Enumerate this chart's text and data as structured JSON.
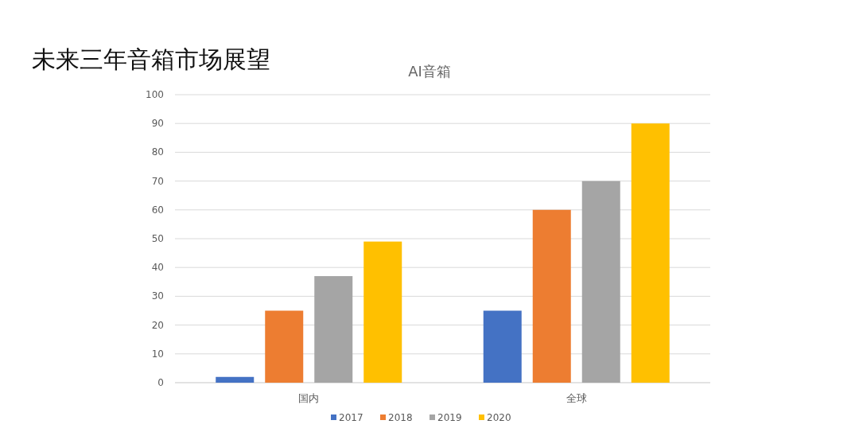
{
  "chart_data": {
    "type": "bar",
    "title": "未来三年音箱市场展望",
    "subtitle": "AI音箱",
    "categories": [
      "国内",
      "全球"
    ],
    "series": [
      {
        "name": "2017",
        "color": "#4472c4",
        "values": [
          2,
          25
        ]
      },
      {
        "name": "2018",
        "color": "#ed7d31",
        "values": [
          25,
          60
        ]
      },
      {
        "name": "2019",
        "color": "#a5a5a5",
        "values": [
          37,
          70
        ]
      },
      {
        "name": "2020",
        "color": "#ffc000",
        "values": [
          49,
          90
        ]
      }
    ],
    "ylim": [
      0,
      100
    ],
    "yticks": [
      0,
      10,
      20,
      30,
      40,
      50,
      60,
      70,
      80,
      90,
      100
    ],
    "grid": "y",
    "legend": "bottom"
  }
}
